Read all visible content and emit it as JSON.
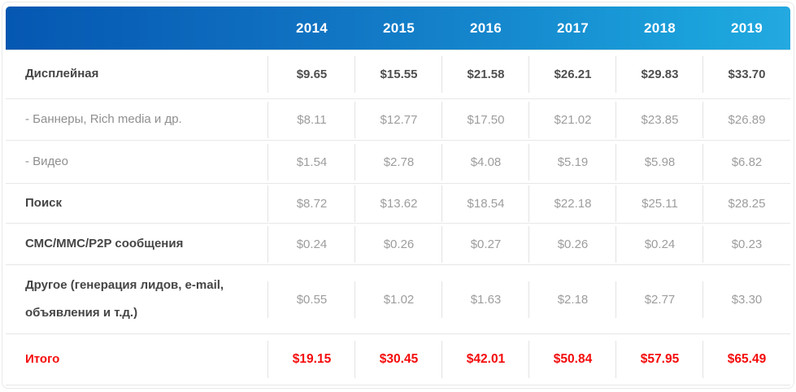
{
  "colors": {
    "header_gradient_left": "#0557b1",
    "header_gradient_right": "#24a9e0",
    "header_text": "#ffffff",
    "label_dark": "#454545",
    "value_gray": "#9d9d9d",
    "total_red": "#f40b0b",
    "grid_border": "#e7e7e7"
  },
  "table": {
    "years": [
      "2014",
      "2015",
      "2016",
      "2017",
      "2018",
      "2019"
    ],
    "rows": [
      {
        "label": "Дисплейная",
        "values": [
          "$9.65",
          "$15.55",
          "$21.58",
          "$26.21",
          "$29.83",
          "$33.70"
        ]
      },
      {
        "label": "- Баннеры, Rich media и др.",
        "values": [
          "$8.11",
          "$12.77",
          "$17.50",
          "$21.02",
          "$23.85",
          "$26.89"
        ]
      },
      {
        "label": "- Видео",
        "values": [
          "$1.54",
          "$2.78",
          "$4.08",
          "$5.19",
          "$5.98",
          "$6.82"
        ]
      },
      {
        "label": "Поиск",
        "values": [
          "$8.72",
          "$13.62",
          "$18.54",
          "$22.18",
          "$25.11",
          "$28.25"
        ]
      },
      {
        "label": "СМС/ММС/P2P сообщения",
        "values": [
          "$0.24",
          "$0.26",
          "$0.27",
          "$0.26",
          "$0.24",
          "$0.23"
        ]
      },
      {
        "label": "Другое (генерация лидов, e-mail, объявления и т.д.)",
        "values": [
          "$0.55",
          "$1.02",
          "$1.63",
          "$2.18",
          "$2.77",
          "$3.30"
        ]
      },
      {
        "label": "Итого",
        "values": [
          "$19.15",
          "$30.45",
          "$42.01",
          "$50.84",
          "$57.95",
          "$65.49"
        ]
      }
    ]
  },
  "chart_data": {
    "type": "table",
    "categories": [
      "2014",
      "2015",
      "2016",
      "2017",
      "2018",
      "2019"
    ],
    "series": [
      {
        "name": "Дисплейная",
        "values": [
          9.65,
          15.55,
          21.58,
          26.21,
          29.83,
          33.7
        ]
      },
      {
        "name": "- Баннеры, Rich media и др.",
        "values": [
          8.11,
          12.77,
          17.5,
          21.02,
          23.85,
          26.89
        ]
      },
      {
        "name": "- Видео",
        "values": [
          1.54,
          2.78,
          4.08,
          5.19,
          5.98,
          6.82
        ]
      },
      {
        "name": "Поиск",
        "values": [
          8.72,
          13.62,
          18.54,
          22.18,
          25.11,
          28.25
        ]
      },
      {
        "name": "СМС/ММС/P2P сообщения",
        "values": [
          0.24,
          0.26,
          0.27,
          0.26,
          0.24,
          0.23
        ]
      },
      {
        "name": "Другое (генерация лидов, e-mail, объявления и т.д.)",
        "values": [
          0.55,
          1.02,
          1.63,
          2.18,
          2.77,
          3.3
        ]
      },
      {
        "name": "Итого",
        "values": [
          19.15,
          30.45,
          42.01,
          50.84,
          57.95,
          65.49
        ]
      }
    ],
    "value_prefix": "$",
    "title": "",
    "xlabel": "",
    "ylabel": "",
    "layout_hints": {
      "header_background": "blue-gradient",
      "total_row_color": "red",
      "grid": "light-gray-lines"
    }
  }
}
